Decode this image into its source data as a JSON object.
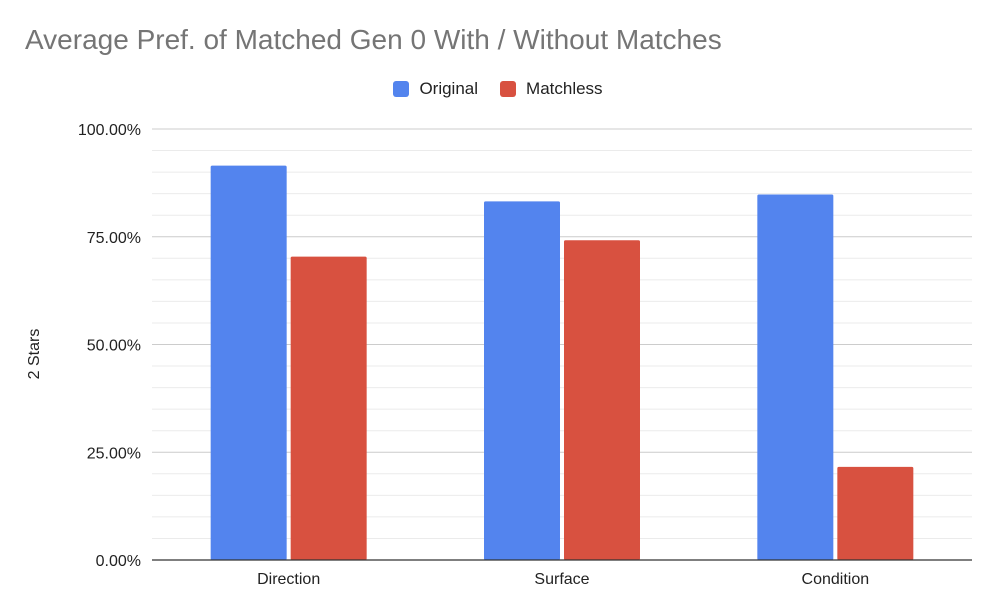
{
  "chart_data": {
    "type": "bar",
    "title": "Average Pref. of Matched Gen 0 With / Without Matches",
    "xlabel": "",
    "ylabel": "2 Stars",
    "categories": [
      "Direction",
      "Surface",
      "Condition"
    ],
    "series": [
      {
        "name": "Original",
        "values": [
          91.5,
          83.2,
          84.8
        ],
        "color": "#5384ee"
      },
      {
        "name": "Matchless",
        "values": [
          70.4,
          74.2,
          21.6
        ],
        "color": "#d85140"
      }
    ],
    "ylim": [
      0,
      100
    ],
    "yticks": [
      0,
      25,
      50,
      75,
      100
    ],
    "ytick_labels": [
      "0.00%",
      "25.00%",
      "50.00%",
      "75.00%",
      "100.00%"
    ],
    "grid": true,
    "legend_position": "top"
  }
}
